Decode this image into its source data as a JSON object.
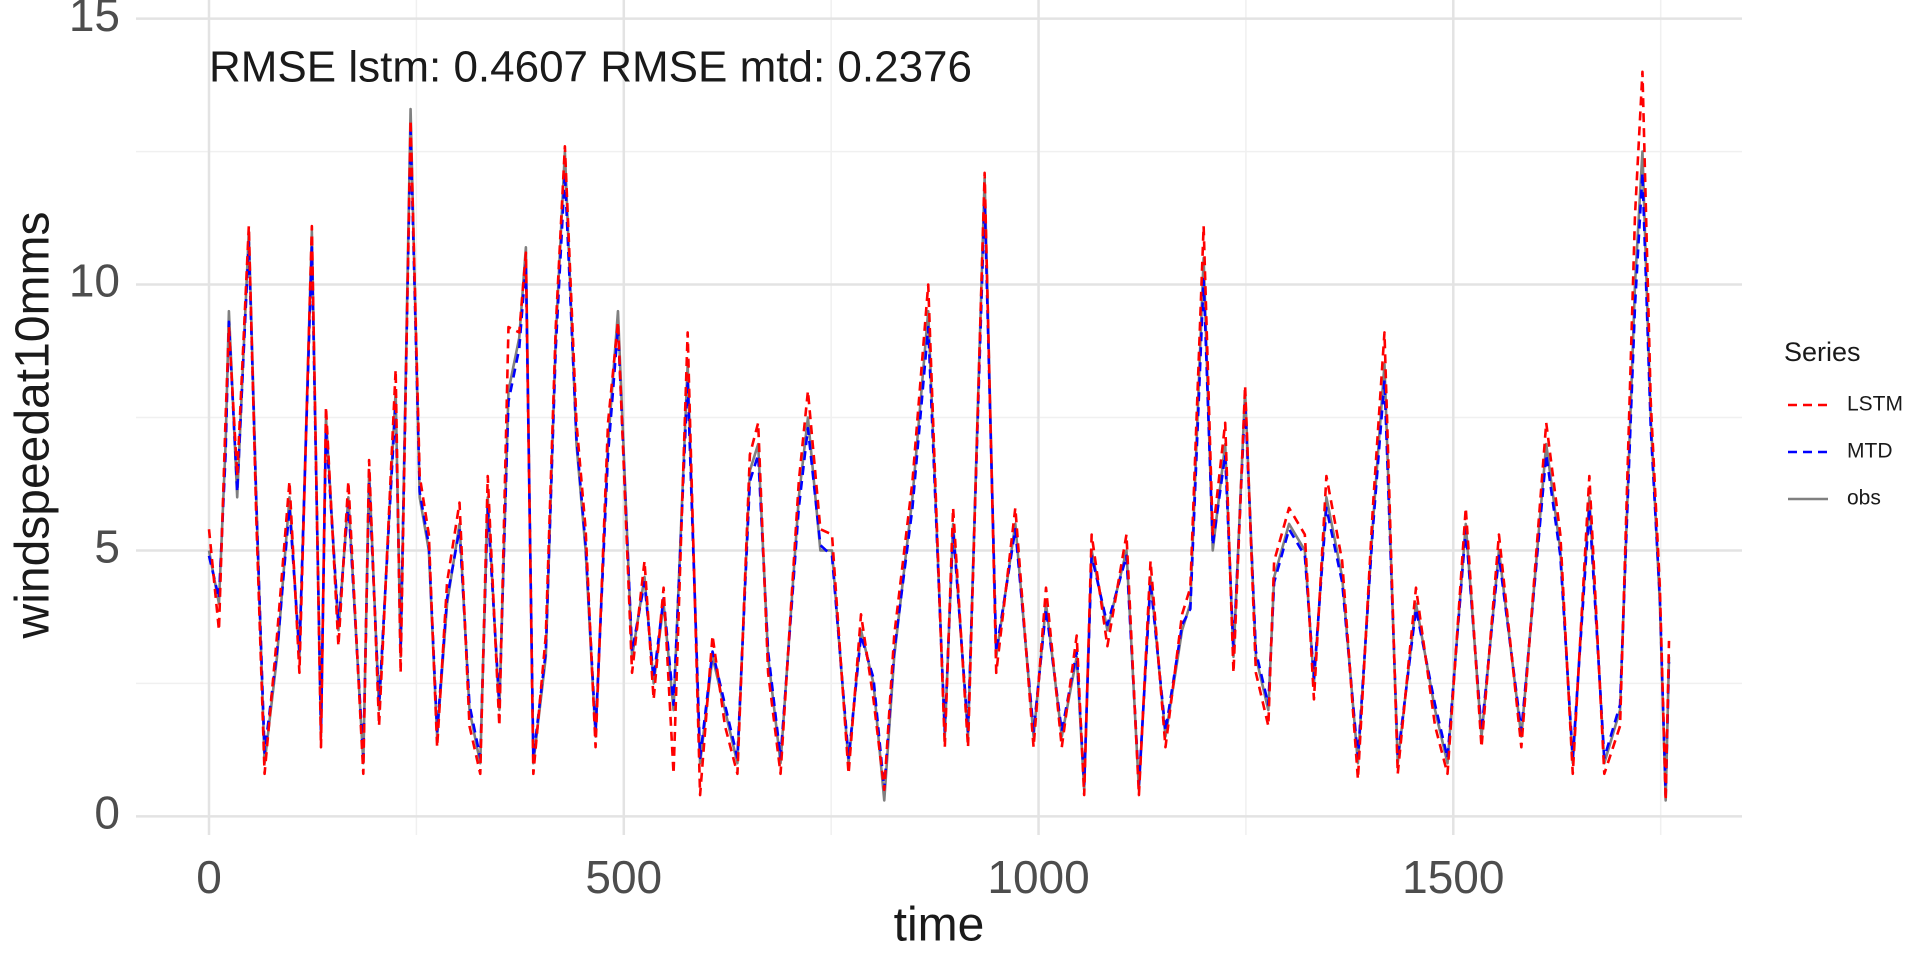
{
  "chart_data": {
    "type": "line",
    "annotation": "RMSE lstm: 0.4607 RMSE mtd: 0.2376",
    "x_label": "time",
    "y_label": "windspeedat10mms",
    "legend_title": "Series",
    "legend_position": "right",
    "grid": true,
    "xlim": [
      -88,
      1848
    ],
    "ylim": [
      -0.35,
      15.35
    ],
    "xticks": [
      0,
      500,
      1000,
      1500
    ],
    "yticks": [
      0,
      5,
      10,
      15
    ],
    "x_minor_ticks": [
      250,
      750,
      1250,
      1750
    ],
    "y_minor_ticks": [
      2.5,
      7.5,
      12.5
    ],
    "x": [
      0,
      12,
      20,
      24,
      34,
      48,
      57,
      67,
      82,
      97,
      109,
      124,
      135,
      141,
      156,
      168,
      186,
      193,
      205,
      225,
      231,
      243,
      254,
      265,
      275,
      287,
      302,
      314,
      327,
      336,
      350,
      361,
      374,
      382,
      391,
      406,
      418,
      429,
      443,
      454,
      466,
      481,
      493,
      510,
      525,
      536,
      548,
      560,
      577,
      592,
      607,
      622,
      637,
      652,
      662,
      674,
      689,
      711,
      722,
      737,
      751,
      771,
      786,
      801,
      814,
      826,
      848,
      867,
      887,
      897,
      915,
      935,
      949,
      972,
      994,
      1009,
      1028,
      1046,
      1055,
      1064,
      1083,
      1106,
      1121,
      1135,
      1153,
      1173,
      1183,
      1199,
      1210,
      1225,
      1235,
      1249,
      1262,
      1277,
      1284,
      1302,
      1321,
      1332,
      1347,
      1366,
      1385,
      1403,
      1417,
      1433,
      1455,
      1478,
      1493,
      1515,
      1534,
      1555,
      1582,
      1612,
      1629,
      1644,
      1664,
      1682,
      1701,
      1719,
      1728,
      1738,
      1749,
      1756,
      1760
    ],
    "series": [
      {
        "name": "LSTM",
        "color": "#ff0000",
        "linestyle": "dashed",
        "values": [
          5.4,
          3.5,
          7.5,
          9.2,
          6.4,
          11.1,
          5.6,
          0.8,
          3.4,
          6.3,
          2.7,
          11.1,
          1.3,
          7.7,
          3.2,
          6.3,
          0.8,
          6.7,
          1.7,
          8.4,
          2.7,
          13.1,
          6.4,
          5.3,
          1.3,
          4.4,
          5.9,
          1.7,
          0.8,
          6.4,
          1.7,
          9.2,
          9.1,
          10.6,
          0.8,
          3.4,
          9.2,
          12.6,
          7.4,
          5.4,
          1.3,
          7.4,
          9.3,
          2.7,
          4.8,
          2.2,
          4.3,
          0.8,
          9.1,
          0.4,
          3.4,
          1.7,
          0.8,
          6.8,
          7.4,
          2.7,
          0.8,
          6.3,
          8,
          5.4,
          5.3,
          0.8,
          3.8,
          2.2,
          0.5,
          3.4,
          6.3,
          10,
          1.3,
          5.8,
          1.3,
          12.1,
          2.7,
          5.8,
          1.3,
          4.3,
          1.3,
          3.4,
          0.4,
          5.3,
          3.2,
          5.3,
          0.4,
          4.8,
          1.3,
          3.8,
          4.3,
          11.1,
          5.3,
          7.4,
          2.7,
          8.1,
          2.7,
          1.7,
          4.8,
          5.8,
          5.3,
          2.2,
          6.4,
          4.8,
          0.7,
          5.8,
          9.1,
          0.8,
          4.3,
          1.7,
          0.8,
          5.8,
          1.3,
          5.3,
          1.3,
          7.4,
          5.3,
          0.8,
          6.4,
          0.8,
          1.7,
          11.3,
          14,
          7.8,
          4.3,
          0.3,
          3.3
        ]
      },
      {
        "name": "MTD",
        "color": "#0000ff",
        "linestyle": "dashed",
        "values": [
          4.9,
          4.1,
          6.8,
          9.3,
          6.1,
          10.8,
          5.9,
          1.2,
          3.1,
          5.8,
          3.1,
          10.7,
          1.6,
          7.3,
          3.6,
          5.9,
          1.1,
          6.3,
          2.1,
          7.8,
          3.1,
          12.9,
          6.1,
          5.1,
          1.6,
          4.1,
          5.4,
          2.1,
          1.1,
          5.8,
          2.1,
          7.8,
          8.8,
          10.4,
          1.1,
          3.1,
          8.8,
          12.1,
          7.1,
          5.1,
          1.6,
          6.8,
          9.2,
          3.1,
          4.4,
          2.6,
          4.1,
          2.1,
          8.2,
          1.1,
          3.1,
          2.1,
          1.1,
          6.3,
          6.8,
          3.1,
          1.1,
          5.8,
          7.3,
          5.1,
          4.9,
          1.1,
          3.4,
          2.6,
          0.5,
          3.1,
          5.8,
          9.2,
          1.6,
          5.4,
          1.6,
          11.6,
          3.1,
          5.4,
          1.6,
          3.9,
          1.6,
          3.1,
          0.6,
          4.9,
          3.6,
          4.9,
          0.6,
          4.4,
          1.6,
          3.6,
          3.9,
          10.1,
          5.1,
          6.8,
          3.1,
          7.8,
          3.1,
          2.1,
          4.4,
          5.4,
          4.9,
          2.6,
          5.8,
          4.4,
          1.1,
          5.4,
          8.2,
          1.1,
          3.9,
          2.1,
          1.1,
          5.4,
          1.6,
          4.9,
          1.6,
          6.8,
          4.9,
          1.1,
          5.8,
          1.1,
          2.1,
          9.6,
          12.1,
          7.3,
          4.1,
          0.4,
          2.9
        ]
      },
      {
        "name": "obs",
        "color": "#808080",
        "linestyle": "solid",
        "values": [
          5,
          4,
          7,
          9.5,
          6,
          11,
          6,
          1,
          3,
          6,
          3,
          11,
          1.5,
          7.5,
          3.5,
          6,
          1,
          6.5,
          2,
          8,
          3,
          13.3,
          6,
          5,
          1.5,
          4,
          5.5,
          2,
          1,
          6,
          2,
          8,
          9,
          10.7,
          1,
          3,
          9,
          12.5,
          7,
          5,
          1.5,
          7,
          9.5,
          3,
          4.5,
          2.5,
          4,
          2,
          8.5,
          1,
          3,
          2,
          1,
          6.5,
          7,
          3,
          1,
          6,
          7.5,
          5,
          5,
          1,
          3.5,
          2.5,
          0.3,
          3,
          6,
          9.5,
          1.5,
          5.5,
          1.5,
          12,
          3,
          5.5,
          1.5,
          4,
          1.5,
          3,
          0.5,
          5,
          3.5,
          5,
          0.5,
          4.5,
          1.5,
          3.5,
          4,
          10.5,
          5,
          7,
          3,
          8,
          3,
          2,
          4.5,
          5.5,
          5,
          2.5,
          6,
          4.5,
          1,
          5.5,
          8.5,
          1,
          4,
          2,
          1,
          5.5,
          1.5,
          5,
          1.5,
          7,
          5,
          1,
          6,
          1,
          2,
          10,
          12.5,
          7.5,
          4,
          0.3,
          3
        ]
      }
    ]
  }
}
